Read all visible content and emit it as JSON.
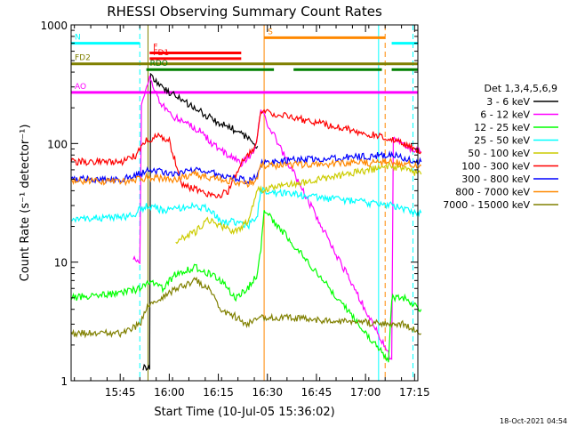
{
  "chart_data": {
    "type": "line",
    "title": "RHESSI Observing Summary Count Rates",
    "xlabel": "Start Time (10-Jul-05 15:36:02)",
    "ylabel": "Count Rate (s⁻¹ detector⁻¹)",
    "yscale": "log",
    "xlim_minutes": [
      -6,
      100
    ],
    "ylim": [
      1,
      1000
    ],
    "x_ticks": [
      {
        "min": 9,
        "label": "15:45"
      },
      {
        "min": 24,
        "label": "16:00"
      },
      {
        "min": 39,
        "label": "16:15"
      },
      {
        "min": 54,
        "label": "16:30"
      },
      {
        "min": 69,
        "label": "16:45"
      },
      {
        "min": 84,
        "label": "17:00"
      },
      {
        "min": 99,
        "label": "17:15"
      }
    ],
    "y_ticks": [
      {
        "value": 1,
        "label": "1"
      },
      {
        "value": 10,
        "label": "10"
      },
      {
        "value": 100,
        "label": "100"
      },
      {
        "value": 1000,
        "label": "1000"
      }
    ],
    "legend_title": "Det 1,3,4,5,6,9",
    "legend_position": "right",
    "series": [
      {
        "name": "3 - 6 keV",
        "color": "#000000",
        "points": [
          [
            16,
            1.3
          ],
          [
            18,
            1.3
          ],
          [
            18.3,
            380
          ],
          [
            21,
            310
          ],
          [
            24,
            270
          ],
          [
            28,
            230
          ],
          [
            33,
            190
          ],
          [
            38,
            155
          ],
          [
            43,
            135
          ],
          [
            48,
            110
          ],
          [
            51,
            95
          ]
        ]
      },
      {
        "name": "6 - 12 keV",
        "color": "#ff00ff",
        "points": [
          [
            13,
            11
          ],
          [
            15,
            10
          ],
          [
            15.5,
            220
          ],
          [
            18,
            360
          ],
          [
            21,
            230
          ],
          [
            24,
            175
          ],
          [
            28,
            155
          ],
          [
            33,
            130
          ],
          [
            38,
            95
          ],
          [
            42,
            80
          ],
          [
            46,
            68
          ],
          [
            50,
            85
          ],
          [
            51,
            120
          ],
          [
            52,
            190
          ],
          [
            92,
            1.5
          ],
          [
            92.5,
            110
          ],
          [
            96,
            95
          ],
          [
            101,
            85
          ]
        ]
      },
      {
        "name": "12 - 25 keV",
        "color": "#00ff00",
        "points": [
          [
            -6,
            5
          ],
          [
            10,
            5.5
          ],
          [
            15,
            6
          ],
          [
            18,
            7
          ],
          [
            22,
            6
          ],
          [
            26,
            8
          ],
          [
            32,
            9
          ],
          [
            36,
            8
          ],
          [
            40,
            7
          ],
          [
            44,
            5
          ],
          [
            48,
            6
          ],
          [
            51,
            8
          ],
          [
            52,
            13
          ],
          [
            53,
            28
          ],
          [
            91,
            1.5
          ],
          [
            92,
            5
          ],
          [
            96,
            5
          ],
          [
            101,
            4
          ]
        ]
      },
      {
        "name": "25 - 50 keV",
        "color": "#00ffff",
        "points": [
          [
            -6,
            23
          ],
          [
            10,
            24
          ],
          [
            14,
            26
          ],
          [
            15,
            28
          ],
          [
            18,
            30
          ],
          [
            22,
            27
          ],
          [
            26,
            28
          ],
          [
            32,
            30
          ],
          [
            36,
            28
          ],
          [
            40,
            22
          ],
          [
            44,
            22
          ],
          [
            48,
            20
          ],
          [
            51,
            25
          ],
          [
            52,
            40
          ],
          [
            92,
            30
          ],
          [
            96,
            28
          ],
          [
            101,
            26
          ]
        ]
      },
      {
        "name": "50 - 100 keV",
        "color": "#cccc00",
        "points": [
          [
            26,
            15
          ],
          [
            32,
            18
          ],
          [
            36,
            23
          ],
          [
            40,
            20
          ],
          [
            44,
            18
          ],
          [
            48,
            22
          ],
          [
            51,
            40
          ],
          [
            92,
            65
          ],
          [
            96,
            60
          ],
          [
            101,
            55
          ]
        ]
      },
      {
        "name": "100 - 300 keV",
        "color": "#ff0000",
        "points": [
          [
            -6,
            70
          ],
          [
            10,
            70
          ],
          [
            14,
            80
          ],
          [
            16,
            100
          ],
          [
            18,
            110
          ],
          [
            21,
            115
          ],
          [
            24,
            105
          ],
          [
            28,
            45
          ],
          [
            33,
            40
          ],
          [
            38,
            35
          ],
          [
            42,
            40
          ],
          [
            46,
            70
          ],
          [
            50,
            90
          ],
          [
            51,
            120
          ],
          [
            52,
            190
          ],
          [
            92,
            110
          ],
          [
            96,
            100
          ],
          [
            101,
            85
          ]
        ]
      },
      {
        "name": "300 - 800 keV",
        "color": "#0000ff",
        "points": [
          [
            -6,
            50
          ],
          [
            10,
            50
          ],
          [
            14,
            55
          ],
          [
            18,
            60
          ],
          [
            22,
            58
          ],
          [
            26,
            55
          ],
          [
            32,
            62
          ],
          [
            36,
            58
          ],
          [
            40,
            55
          ],
          [
            44,
            52
          ],
          [
            48,
            48
          ],
          [
            51,
            52
          ],
          [
            52,
            70
          ],
          [
            92,
            80
          ],
          [
            96,
            75
          ],
          [
            101,
            70
          ]
        ]
      },
      {
        "name": "800 - 7000 keV",
        "color": "#ff8800",
        "points": [
          [
            -6,
            48
          ],
          [
            10,
            48
          ],
          [
            14,
            50
          ],
          [
            18,
            52
          ],
          [
            22,
            50
          ],
          [
            26,
            50
          ],
          [
            32,
            55
          ],
          [
            36,
            52
          ],
          [
            40,
            50
          ],
          [
            44,
            48
          ],
          [
            48,
            46
          ],
          [
            51,
            50
          ],
          [
            52,
            65
          ],
          [
            92,
            70
          ],
          [
            96,
            68
          ],
          [
            101,
            65
          ]
        ]
      },
      {
        "name": "7000 - 15000 keV",
        "color": "#808000",
        "points": [
          [
            -6,
            2.5
          ],
          [
            10,
            2.5
          ],
          [
            15,
            3
          ],
          [
            18,
            4.5
          ],
          [
            22,
            5
          ],
          [
            26,
            6
          ],
          [
            32,
            7
          ],
          [
            36,
            6
          ],
          [
            40,
            4
          ],
          [
            44,
            3.5
          ],
          [
            48,
            3
          ],
          [
            51,
            3.5
          ],
          [
            92,
            3
          ],
          [
            96,
            3
          ],
          [
            101,
            2.5
          ]
        ]
      }
    ],
    "flag_bars": [
      {
        "label": "N",
        "color": "#00ffff",
        "y_value": 700,
        "segments": [
          [
            -6,
            15
          ],
          [
            92,
            100
          ]
        ]
      },
      {
        "label": "S",
        "color": "#ff8800",
        "y_value": 780,
        "segments": [
          [
            53,
            90
          ]
        ]
      },
      {
        "label": "F",
        "color": "#ff0000",
        "y_value": 580,
        "segments": [
          [
            18,
            46
          ]
        ]
      },
      {
        "label": "FD1",
        "color": "#ff0000",
        "y_value": 520,
        "segments": [
          [
            18,
            46
          ]
        ]
      },
      {
        "label": "FD2",
        "color": "#808000",
        "y_value": 470,
        "segments": [
          [
            -6,
            100
          ]
        ]
      },
      {
        "label": "RDO",
        "color": "#008000",
        "y_value": 420,
        "segments": [
          [
            17,
            56
          ],
          [
            62,
            89
          ],
          [
            92,
            100
          ]
        ]
      },
      {
        "label": "AO",
        "color": "#ff00ff",
        "y_value": 270,
        "segments": [
          [
            -6,
            100
          ]
        ]
      }
    ],
    "vertical_lines": [
      {
        "x": 15,
        "color": "#00ffff",
        "style": "dashed"
      },
      {
        "x": 17.5,
        "color": "#808000",
        "style": "solid"
      },
      {
        "x": 53,
        "color": "#ff8800",
        "style": "solid"
      },
      {
        "x": 88,
        "color": "#00ffff",
        "style": "solid"
      },
      {
        "x": 90,
        "color": "#ff8800",
        "style": "dashed"
      },
      {
        "x": 98.5,
        "color": "#00ffff",
        "style": "dashed"
      }
    ],
    "timestamp": "18-Oct-2021 04:54"
  }
}
